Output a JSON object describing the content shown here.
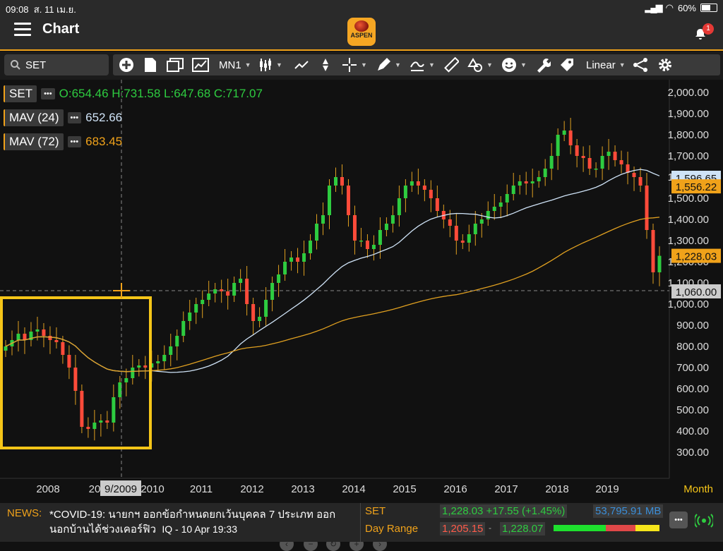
{
  "status": {
    "time": "09:08",
    "date": "ส. 11 เม.ย.",
    "battery": "60%"
  },
  "header": {
    "title": "Chart",
    "logo_text": "ASPEN",
    "notif_count": "1"
  },
  "toolbar": {
    "symbol": "SET",
    "interval": "MN1",
    "scale": "Linear"
  },
  "legend": {
    "ohlc": "O:654.46 H:731.58 L:647.68 C:717.07",
    "set_label": "SET",
    "mav24_label": "MAV (24)",
    "mav24_value": "652.66",
    "mav72_label": "MAV (72)",
    "mav72_value": "683.45",
    "dots": "•••"
  },
  "chart_data": {
    "type": "candlestick",
    "title": "SET",
    "period": "Month",
    "y_ticks": [
      "2,000.00",
      "1,900.00",
      "1,800.00",
      "1,700.00",
      "1,600.00",
      "1,500.00",
      "1,400.00",
      "1,300.00",
      "1,200.00",
      "1,100.00",
      "1,000.00",
      "900.00",
      "800.00",
      "700.00",
      "600.00",
      "500.00",
      "400.00",
      "300.00"
    ],
    "ylim": [
      300,
      2000
    ],
    "x_ticks": [
      "2008",
      "20",
      "2010",
      "2011",
      "2012",
      "2013",
      "2014",
      "2015",
      "2016",
      "2017",
      "2018",
      "2019"
    ],
    "x_label": "Month",
    "crosshair_x": "9/2009",
    "crosshair_price": "1,060.00",
    "price_tags": [
      {
        "value": "1,596.65",
        "color": "#cfe3f7"
      },
      {
        "value": "1,556.22",
        "color": "#f0a21a"
      },
      {
        "value": "1,228.03",
        "color": "#f0a21a"
      },
      {
        "value": "1,060.00",
        "color": "#cccccc"
      }
    ],
    "monthly_closes": [
      800,
      830,
      860,
      830,
      870,
      880,
      850,
      830,
      820,
      760,
      700,
      590,
      420,
      410,
      440,
      450,
      440,
      560,
      630,
      650,
      700,
      710,
      700,
      720,
      730,
      760,
      800,
      850,
      920,
      960,
      1000,
      1020,
      1050,
      1070,
      1060,
      1040,
      1100,
      1120,
      1000,
      920,
      940,
      1020,
      1100,
      1140,
      1200,
      1220,
      1200,
      1240,
      1300,
      1380,
      1420,
      1560,
      1600,
      1560,
      1420,
      1300,
      1300,
      1260,
      1280,
      1350,
      1380,
      1420,
      1500,
      1560,
      1580,
      1560,
      1540,
      1500,
      1440,
      1400,
      1370,
      1300,
      1290,
      1330,
      1380,
      1400,
      1440,
      1460,
      1480,
      1520,
      1560,
      1580,
      1570,
      1580,
      1600,
      1640,
      1700,
      1800,
      1820,
      1750,
      1700,
      1690,
      1640,
      1640,
      1700,
      1720,
      1680,
      1660,
      1620,
      1600,
      1560,
      1350,
      1150,
      1228
    ],
    "series": [
      {
        "name": "MAV (24)",
        "color": "#cfe3f7"
      },
      {
        "name": "MAV (72)",
        "color": "#e0a020"
      }
    ]
  },
  "footer": {
    "news_label": "NEWS:",
    "news_text": "*COVID-19: นายกฯ ออกข้อกำหนดยกเว้นบุคคล 7 ประเภท ออกนอกบ้านได้ช่วงเคอร์ฟิว",
    "news_time": "IQ - 10 Apr 19:33",
    "set_label": "SET",
    "set_value": "1,228.03 +17.55 (+1.45%)",
    "volume": "53,795.91 MB",
    "range_label": "Day Range",
    "range_low": "1,205.15",
    "range_high": "1,228.07",
    "range_sep": "-",
    "more": "•••"
  }
}
